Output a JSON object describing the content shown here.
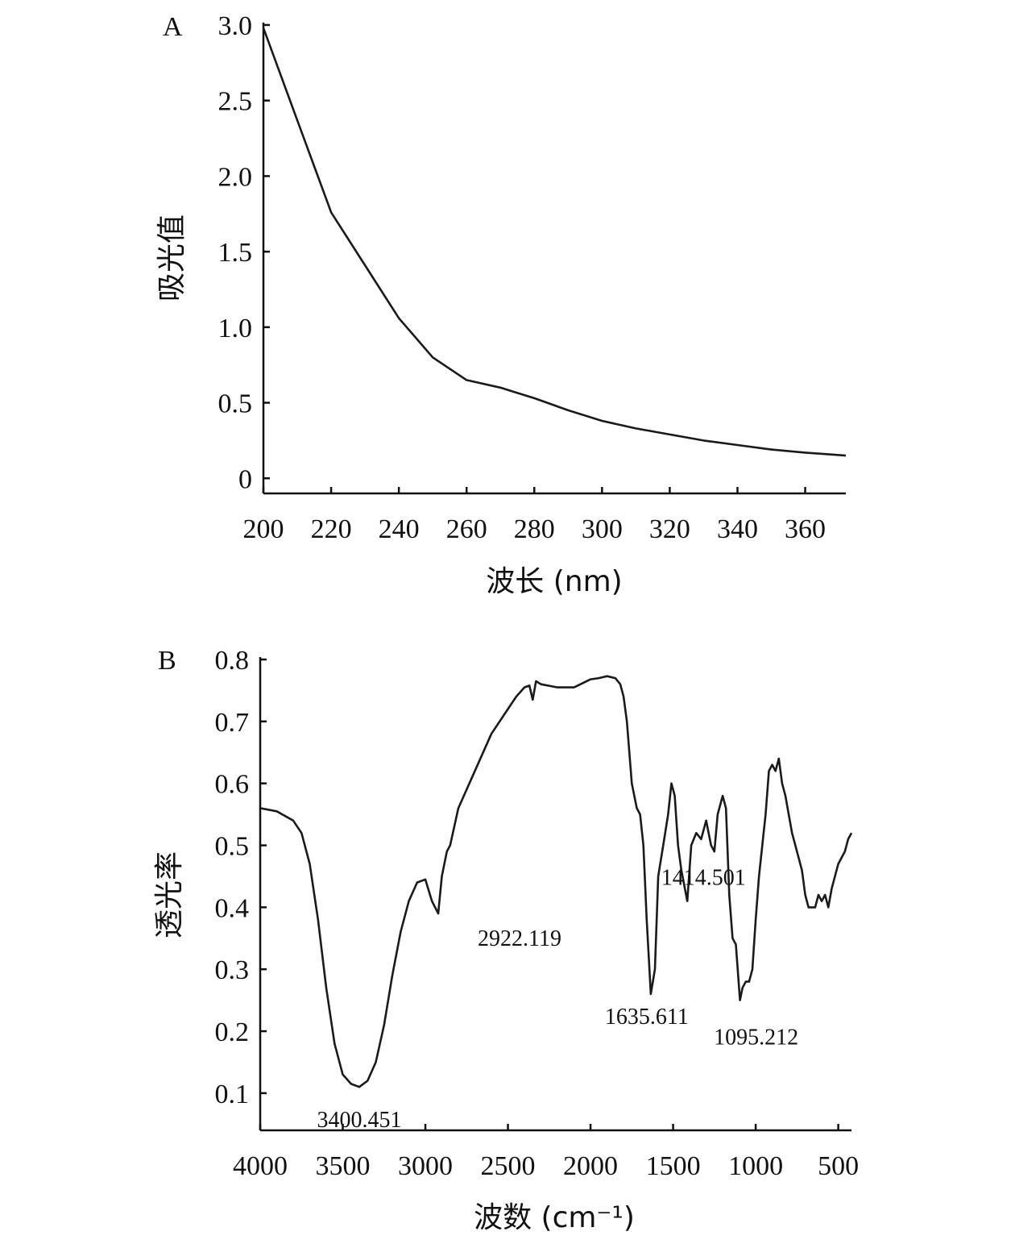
{
  "chart_data": [
    {
      "type": "line",
      "panel": "A",
      "xlabel": "波长 (nm)",
      "ylabel": "吸光值",
      "xlim": [
        200,
        372
      ],
      "ylim": [
        -0.1,
        3.0
      ],
      "xticks": [
        200,
        220,
        240,
        260,
        280,
        300,
        320,
        340,
        360
      ],
      "yticks": [
        0,
        0.5,
        1.0,
        1.5,
        2.0,
        2.5,
        3.0
      ],
      "ytick_labels": [
        "0",
        "0.5",
        "1.0",
        "1.5",
        "2.0",
        "2.5",
        "3.0"
      ],
      "grid": false,
      "series": [
        {
          "x": [
            200,
            210,
            220,
            230,
            240,
            250,
            260,
            270,
            280,
            290,
            300,
            310,
            320,
            330,
            340,
            350,
            360,
            372
          ],
          "y": [
            2.98,
            2.37,
            1.76,
            1.41,
            1.06,
            0.8,
            0.65,
            0.6,
            0.53,
            0.45,
            0.38,
            0.33,
            0.29,
            0.25,
            0.22,
            0.19,
            0.17,
            0.15
          ]
        }
      ]
    },
    {
      "type": "line",
      "panel": "B",
      "xlabel": "波数 (cm⁻¹)",
      "ylabel": "透光率",
      "xlim": [
        4000,
        420
      ],
      "ylim": [
        0.04,
        0.8
      ],
      "xticks": [
        4000,
        3500,
        3000,
        2500,
        2000,
        1500,
        1000,
        500
      ],
      "yticks": [
        0.1,
        0.2,
        0.3,
        0.4,
        0.5,
        0.6,
        0.7,
        0.8
      ],
      "ytick_labels": [
        "0.1",
        "0.2",
        "0.3",
        "0.4",
        "0.5",
        "0.6",
        "0.7",
        "0.8"
      ],
      "grid": false,
      "annotations": [
        {
          "text": "3400.451",
          "x": 3400,
          "y": 0.11
        },
        {
          "text": "2922.119",
          "x": 2922,
          "y": 0.39
        },
        {
          "text": "1635.611",
          "x": 1635,
          "y": 0.26
        },
        {
          "text": "1414.501",
          "x": 1414,
          "y": 0.41
        },
        {
          "text": "1095.212",
          "x": 1095,
          "y": 0.25
        }
      ],
      "series": [
        {
          "x": [
            4000,
            3900,
            3800,
            3750,
            3700,
            3650,
            3600,
            3550,
            3500,
            3450,
            3400,
            3350,
            3300,
            3250,
            3200,
            3150,
            3100,
            3050,
            3000,
            2960,
            2922,
            2900,
            2870,
            2850,
            2800,
            2700,
            2600,
            2500,
            2450,
            2400,
            2370,
            2350,
            2330,
            2300,
            2200,
            2100,
            2000,
            1950,
            1900,
            1850,
            1820,
            1800,
            1780,
            1750,
            1720,
            1700,
            1680,
            1660,
            1635,
            1610,
            1590,
            1560,
            1530,
            1510,
            1490,
            1470,
            1450,
            1414,
            1390,
            1360,
            1330,
            1300,
            1270,
            1250,
            1230,
            1200,
            1180,
            1160,
            1140,
            1120,
            1095,
            1080,
            1060,
            1040,
            1020,
            1000,
            980,
            960,
            940,
            920,
            900,
            880,
            860,
            840,
            820,
            800,
            780,
            760,
            740,
            720,
            700,
            680,
            660,
            640,
            620,
            600,
            580,
            560,
            540,
            520,
            500,
            480,
            460,
            440,
            420
          ],
          "y": [
            0.56,
            0.555,
            0.54,
            0.52,
            0.47,
            0.38,
            0.27,
            0.18,
            0.13,
            0.115,
            0.11,
            0.12,
            0.15,
            0.21,
            0.29,
            0.36,
            0.41,
            0.44,
            0.445,
            0.41,
            0.39,
            0.45,
            0.49,
            0.5,
            0.56,
            0.62,
            0.68,
            0.72,
            0.74,
            0.755,
            0.758,
            0.735,
            0.765,
            0.76,
            0.755,
            0.755,
            0.768,
            0.77,
            0.773,
            0.77,
            0.76,
            0.74,
            0.7,
            0.6,
            0.56,
            0.55,
            0.5,
            0.38,
            0.26,
            0.3,
            0.45,
            0.5,
            0.55,
            0.6,
            0.58,
            0.5,
            0.46,
            0.41,
            0.5,
            0.52,
            0.51,
            0.54,
            0.5,
            0.49,
            0.55,
            0.58,
            0.56,
            0.42,
            0.35,
            0.34,
            0.25,
            0.27,
            0.28,
            0.28,
            0.3,
            0.38,
            0.45,
            0.5,
            0.55,
            0.62,
            0.63,
            0.62,
            0.64,
            0.6,
            0.58,
            0.55,
            0.52,
            0.5,
            0.48,
            0.46,
            0.42,
            0.4,
            0.4,
            0.4,
            0.42,
            0.41,
            0.42,
            0.4,
            0.43,
            0.45,
            0.47,
            0.48,
            0.49,
            0.51,
            0.52
          ]
        }
      ]
    }
  ]
}
